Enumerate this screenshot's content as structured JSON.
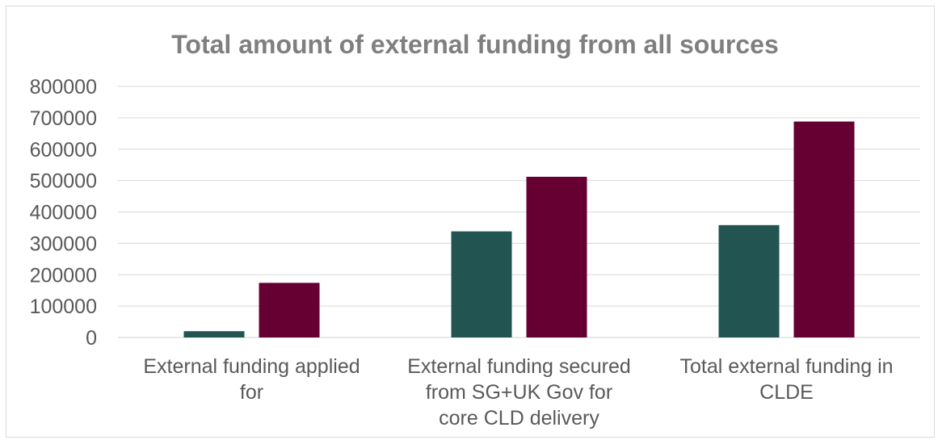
{
  "chart_data": {
    "type": "bar",
    "title": "Total amount of external funding from all sources",
    "categories": [
      [
        "External funding applied",
        "for"
      ],
      [
        "External funding secured",
        "from SG+UK Gov for",
        "core CLD delivery"
      ],
      [
        "Total external funding in",
        "CLDE"
      ]
    ],
    "series": [
      {
        "values": [
          20000,
          338000,
          358000
        ],
        "color": "#225551"
      },
      {
        "values": [
          174000,
          512000,
          688000
        ],
        "color": "#660033"
      }
    ],
    "ylim": [
      0,
      800000
    ],
    "yticks": [
      0,
      100000,
      200000,
      300000,
      400000,
      500000,
      600000,
      700000,
      800000
    ],
    "grid": true,
    "xlabel": "",
    "ylabel": ""
  }
}
